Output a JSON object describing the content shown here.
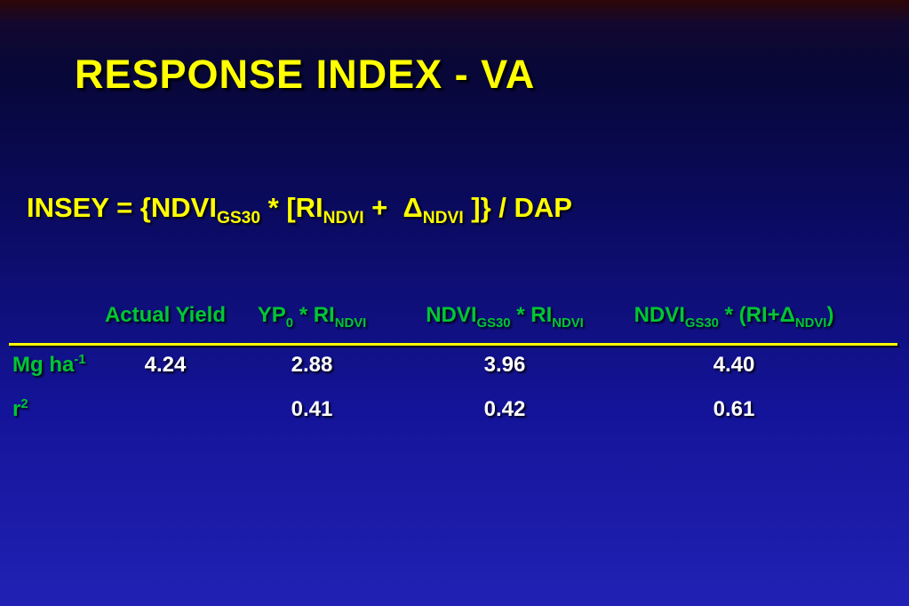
{
  "slide": {
    "title": "RESPONSE INDEX - VA",
    "formula": [
      {
        "text": "INSEY = {NDVI"
      },
      {
        "sub": "GS30"
      },
      {
        "text": " * [RI"
      },
      {
        "sub": "NDVI"
      },
      {
        "text": " +  Δ"
      },
      {
        "sub": "NDVI"
      },
      {
        "text": " ]} / DAP"
      }
    ],
    "table": {
      "headers": [
        [
          {
            "text": "Actual Yield"
          }
        ],
        [
          {
            "text": "YP"
          },
          {
            "sub": "0"
          },
          {
            "text": " * RI"
          },
          {
            "sub": "NDVI"
          }
        ],
        [
          {
            "text": "NDVI"
          },
          {
            "sub": "GS30"
          },
          {
            "text": " * RI"
          },
          {
            "sub": "NDVI"
          }
        ],
        [
          {
            "text": "NDVI"
          },
          {
            "sub": "GS30"
          },
          {
            "text": " * (RI+Δ"
          },
          {
            "sub": "NDVI"
          },
          {
            "text": ")"
          }
        ]
      ],
      "rows": [
        {
          "label": [
            {
              "text": "Mg ha"
            },
            {
              "sup": "-1"
            }
          ],
          "values": [
            "4.24",
            "2.88",
            "3.96",
            "4.40"
          ]
        },
        {
          "label": [
            {
              "text": "r"
            },
            {
              "sup": "2"
            }
          ],
          "values": [
            "",
            "0.41",
            "0.42",
            "0.61"
          ]
        }
      ]
    },
    "colors": {
      "title_yellow": "#ffff00",
      "formula_yellow": "#ffff00",
      "divider_yellow": "#ffff00",
      "header_green": "#00c734",
      "value_white": "#ffffff",
      "background_top": "#2e0606",
      "background_bottom": "#2121b4"
    }
  }
}
